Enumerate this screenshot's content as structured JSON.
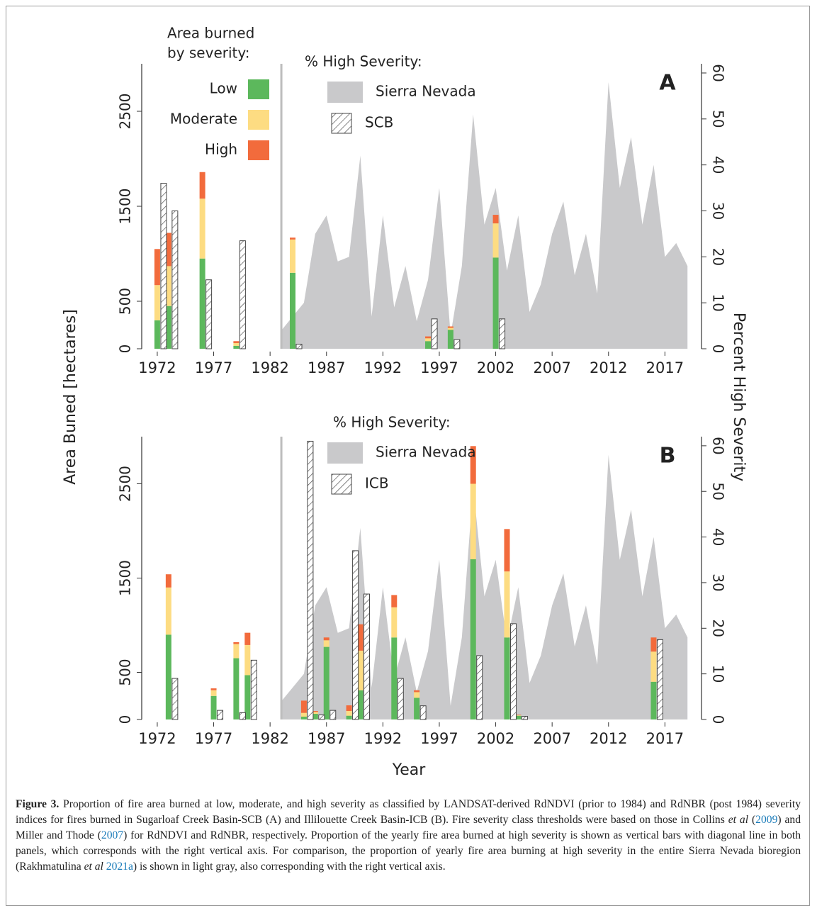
{
  "chart_data": [
    {
      "type": "bar",
      "panel_label": "A",
      "xlim": [
        1971.25,
        2019.3
      ],
      "xticks": [
        1972,
        1977,
        1982,
        1987,
        1992,
        1997,
        2002,
        2007,
        2012,
        2017
      ],
      "ylim": [
        0,
        3000
      ],
      "yticks": [
        0,
        500,
        1500,
        2500
      ],
      "y2lim": [
        0,
        62
      ],
      "y2ticks": [
        0,
        10,
        20,
        30,
        40,
        50,
        60
      ],
      "divider": 1983,
      "legend_title": [
        "Area burned",
        "by severity:"
      ],
      "legend2_title": "% High Severity:",
      "series": [
        {
          "name": "Low",
          "color": "#5cb85c",
          "x": [
            1972,
            1973,
            1976,
            1979,
            1984,
            1996,
            1998,
            2002
          ],
          "values": [
            300,
            450,
            950,
            30,
            800,
            80,
            200,
            960
          ]
        },
        {
          "name": "Moderate",
          "color": "#fddc82",
          "x": [
            1972,
            1973,
            1976,
            1979,
            1984,
            1996,
            1998,
            2002
          ],
          "values": [
            370,
            420,
            630,
            30,
            350,
            30,
            20,
            360
          ]
        },
        {
          "name": "High",
          "color": "#f26b3c",
          "x": [
            1972,
            1973,
            1976,
            1979,
            1984,
            1996,
            1998,
            2002
          ],
          "values": [
            380,
            350,
            280,
            20,
            20,
            20,
            15,
            90
          ]
        },
        {
          "name": "Sierra Nevada",
          "type": "area",
          "axis": "y2",
          "color": "#c9c9cb",
          "x": [
            1983,
            1984,
            1985,
            1986,
            1987,
            1988,
            1989,
            1990,
            1991,
            1992,
            1993,
            1994,
            1995,
            1996,
            1997,
            1998,
            1999,
            2000,
            2001,
            2002,
            2003,
            2004,
            2005,
            2006,
            2007,
            2008,
            2009,
            2010,
            2011,
            2012,
            2013,
            2014,
            2015,
            2016,
            2017,
            2018,
            2019
          ],
          "values": [
            4,
            7,
            10,
            25,
            29,
            19,
            20,
            42,
            7,
            29,
            9,
            18,
            6,
            15,
            35,
            3,
            18,
            51,
            27,
            35,
            17,
            29,
            8,
            14,
            25,
            32,
            16,
            25,
            12,
            58,
            35,
            46,
            27,
            40,
            20,
            23,
            18
          ]
        },
        {
          "name": "SCB",
          "type": "hatched",
          "axis": "y2",
          "color": "#444444",
          "x": [
            1972,
            1973,
            1976,
            1979,
            1984,
            1996,
            1998,
            2002
          ],
          "values": [
            36,
            30,
            15,
            23.5,
            1,
            6.5,
            2,
            6.5
          ]
        }
      ]
    },
    {
      "type": "bar",
      "panel_label": "B",
      "xlim": [
        1971.25,
        2019.3
      ],
      "xticks": [
        1972,
        1977,
        1982,
        1987,
        1992,
        1997,
        2002,
        2007,
        2012,
        2017
      ],
      "ylim": [
        0,
        3000
      ],
      "yticks": [
        0,
        500,
        1500,
        2500
      ],
      "y2lim": [
        0,
        62
      ],
      "y2ticks": [
        0,
        10,
        20,
        30,
        40,
        50,
        60
      ],
      "divider": 1983,
      "legend2_title": "% High Severity:",
      "series": [
        {
          "name": "Low",
          "color": "#5cb85c",
          "x": [
            1973,
            1977,
            1979,
            1980,
            1985,
            1986,
            1987,
            1989,
            1990,
            1993,
            1995,
            2000,
            2003,
            2004,
            2016
          ],
          "values": [
            900,
            250,
            650,
            470,
            30,
            60,
            770,
            40,
            310,
            870,
            230,
            1700,
            870,
            40,
            400
          ]
        },
        {
          "name": "Moderate",
          "color": "#fddc82",
          "x": [
            1973,
            1977,
            1979,
            1980,
            1985,
            1986,
            1987,
            1989,
            1990,
            1993,
            1995,
            2000,
            2003,
            2004,
            2016
          ],
          "values": [
            500,
            60,
            150,
            320,
            40,
            20,
            70,
            50,
            420,
            320,
            60,
            800,
            700,
            5,
            320
          ]
        },
        {
          "name": "High",
          "color": "#f26b3c",
          "x": [
            1973,
            1977,
            1979,
            1980,
            1985,
            1986,
            1987,
            1989,
            1990,
            1993,
            1995,
            2000,
            2003,
            2004,
            2016
          ],
          "values": [
            140,
            20,
            20,
            130,
            130,
            10,
            30,
            60,
            280,
            130,
            20,
            400,
            450,
            5,
            150
          ]
        },
        {
          "name": "Sierra Nevada",
          "type": "area",
          "axis": "y2",
          "color": "#c9c9cb",
          "x": [
            1983,
            1984,
            1985,
            1986,
            1987,
            1988,
            1989,
            1990,
            1991,
            1992,
            1993,
            1994,
            1995,
            1996,
            1997,
            1998,
            1999,
            2000,
            2001,
            2002,
            2003,
            2004,
            2005,
            2006,
            2007,
            2008,
            2009,
            2010,
            2011,
            2012,
            2013,
            2014,
            2015,
            2016,
            2017,
            2018,
            2019
          ],
          "values": [
            4,
            7,
            10,
            25,
            29,
            19,
            20,
            42,
            7,
            29,
            9,
            18,
            6,
            15,
            35,
            3,
            18,
            51,
            27,
            35,
            17,
            29,
            8,
            14,
            25,
            32,
            16,
            25,
            12,
            58,
            35,
            46,
            27,
            40,
            20,
            23,
            18
          ]
        },
        {
          "name": "ICB",
          "type": "hatched",
          "axis": "y2",
          "color": "#444444",
          "x": [
            1973,
            1977,
            1979,
            1980,
            1985,
            1986,
            1987,
            1989,
            1990,
            1993,
            1995,
            2000,
            2003,
            2004,
            2016
          ],
          "values": [
            9,
            2,
            1.5,
            13,
            61,
            1,
            2,
            37,
            27.5,
            9,
            3,
            14,
            21,
            0.7,
            17.5
          ]
        }
      ]
    }
  ],
  "shared": {
    "ylabel": "Area Buned [hectares]",
    "y2label": "Percent High Severity",
    "xlabel": "Year"
  },
  "caption": {
    "label": "Figure 3.",
    "parts": [
      " Proportion of fire area burned at low, moderate, and high severity as classified by LANDSAT-derived RdNDVI (prior to 1984) and RdNBR (post 1984) severity indices for fires burned in Sugarloaf Creek Basin-SCB (A) and Illilouette Creek Basin-ICB (B). Fire severity class thresholds were based on those in Collins ",
      "et al",
      " (",
      "2009",
      ") and Miller and Thode (",
      "2007",
      ") for RdNDVI and RdNBR, respectively. Proportion of the yearly fire area burned at high severity is shown as vertical bars with diagonal line in both panels, which corresponds with the right vertical axis. For comparison, the proportion of yearly fire area burning at high severity in the entire Sierra Nevada bioregion (Rakhmatulina ",
      "et al",
      " ",
      "2021a",
      ") is shown in light gray, also corresponding with the right vertical axis."
    ]
  }
}
